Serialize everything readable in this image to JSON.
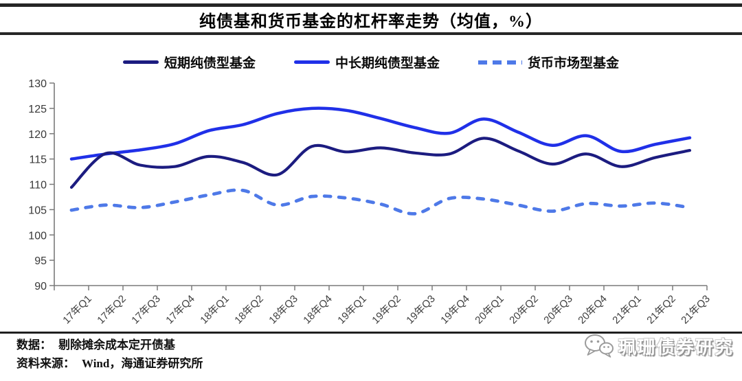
{
  "page": {
    "title": "纯债基和货币基金的杠杆率走势（均值，%）"
  },
  "legend": {
    "items": [
      {
        "label": "短期纯债型基金",
        "color": "#1c1c80",
        "style": "solid"
      },
      {
        "label": "中长期纯债型基金",
        "color": "#2030e8",
        "style": "solid"
      },
      {
        "label": "货币市场型基金",
        "color": "#4e79e8",
        "style": "dashed"
      }
    ]
  },
  "footer": {
    "data_label": "数据：",
    "data_value": "剔除摊余成本定开债基",
    "source_label": "资料来源：",
    "source_value": "Wind，海通证券研究所"
  },
  "watermark": {
    "icon": "wechat-icon",
    "text": "珮珊债券研究"
  },
  "chart_data": {
    "type": "line",
    "title": "纯债基和货币基金的杠杆率走势（均值，%）",
    "xlabel": "",
    "ylabel": "",
    "ylim": [
      90,
      130
    ],
    "y_ticks": [
      90,
      95,
      100,
      105,
      110,
      115,
      120,
      125,
      130
    ],
    "grid": false,
    "legend_position": "top",
    "x_label_rotation": -45,
    "categories": [
      "17年Q1",
      "17年Q2",
      "17年Q3",
      "17年Q4",
      "18年Q1",
      "18年Q2",
      "18年Q3",
      "18年Q4",
      "19年Q1",
      "19年Q2",
      "19年Q3",
      "19年Q4",
      "20年Q1",
      "20年Q2",
      "20年Q3",
      "20年Q4",
      "21年Q1",
      "21年Q2",
      "21年Q3"
    ],
    "series": [
      {
        "name": "短期纯债型基金",
        "color": "#1c1c80",
        "line_style": "solid",
        "values": [
          109.4,
          116.1,
          113.8,
          113.5,
          115.5,
          114.3,
          111.9,
          117.5,
          116.4,
          117.2,
          116.2,
          116.0,
          119.1,
          116.6,
          114.0,
          116.0,
          113.5,
          115.3,
          116.7
        ]
      },
      {
        "name": "中长期纯债型基金",
        "color": "#2030e8",
        "line_style": "solid",
        "values": [
          115.0,
          116.0,
          116.8,
          118.0,
          120.6,
          121.8,
          124.0,
          125.0,
          124.6,
          123.0,
          121.2,
          120.1,
          122.9,
          120.3,
          117.7,
          119.6,
          116.5,
          117.9,
          119.2
        ]
      },
      {
        "name": "货币市场型基金",
        "color": "#4e79e8",
        "line_style": "dashed",
        "values": [
          104.9,
          105.9,
          105.4,
          106.5,
          107.9,
          108.8,
          105.9,
          107.6,
          107.3,
          106.1,
          104.2,
          107.2,
          107.1,
          105.9,
          104.7,
          106.2,
          105.7,
          106.3,
          105.4
        ]
      }
    ]
  }
}
